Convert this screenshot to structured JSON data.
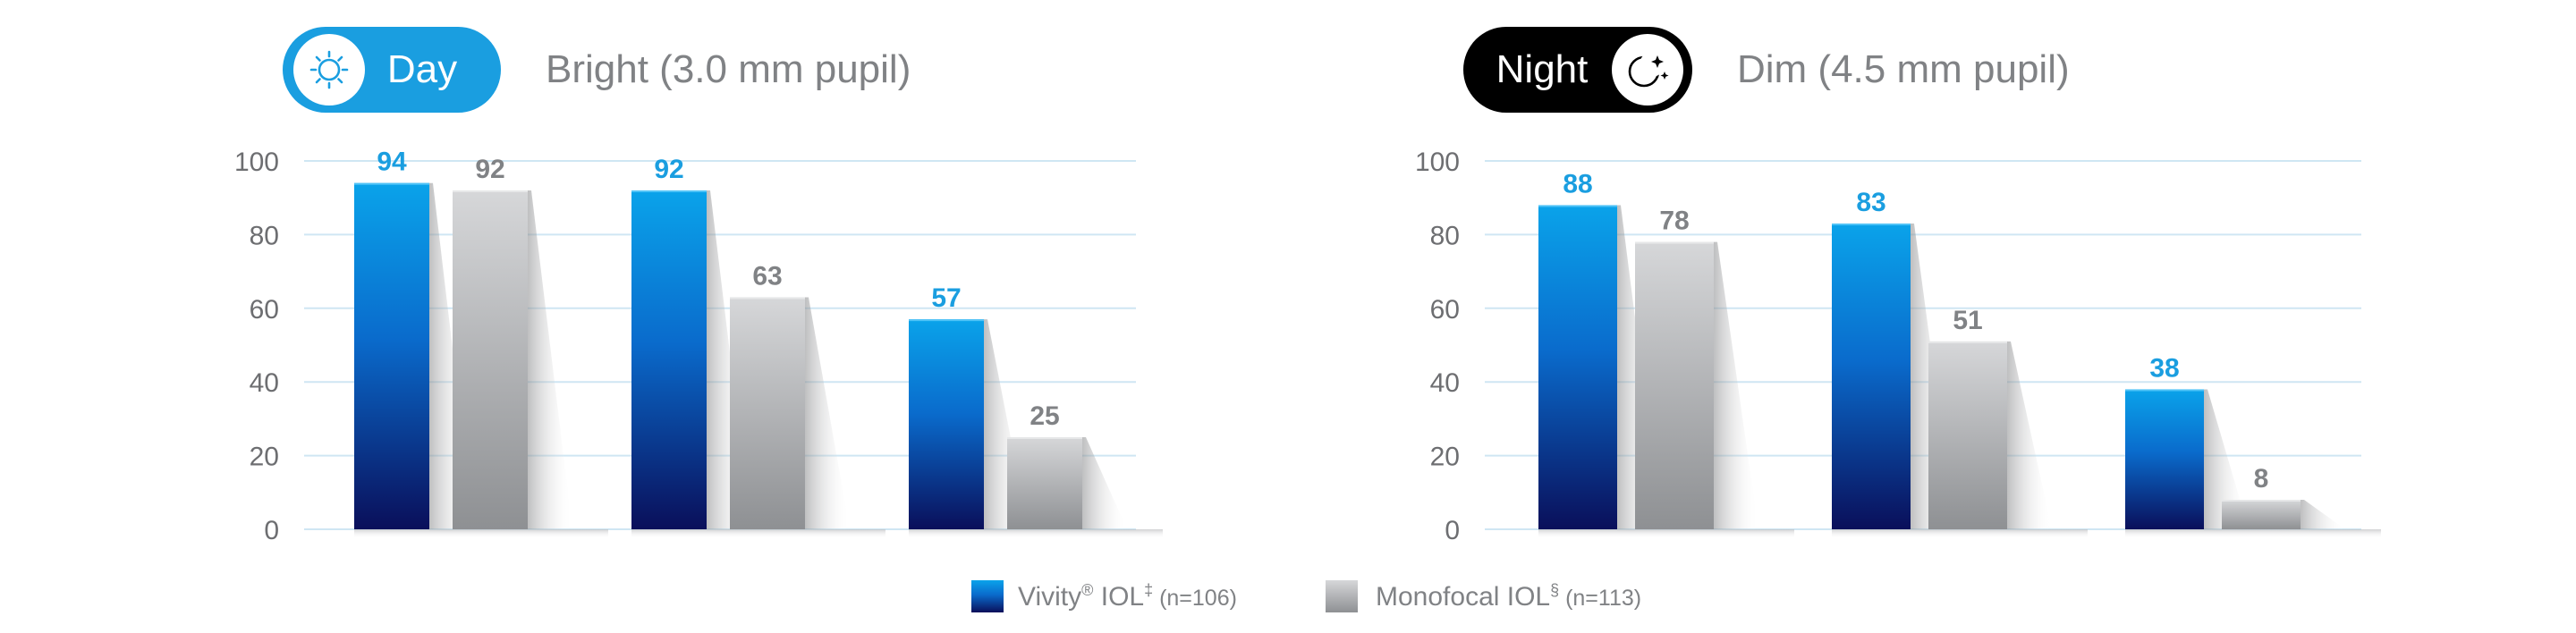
{
  "colors": {
    "vivity": "#0a9be6",
    "vivity_dark": "#0a1a6e",
    "vivity_label": "#1a9ee0",
    "monofocal": "#c9cacc",
    "monofocal_dark": "#8f9194",
    "monofocal_label": "#808285",
    "grid": "#cfe6f3",
    "axis_text": "#6d6e71",
    "day_pill": "#1a9ee0",
    "night_pill": "#000000"
  },
  "panels": [
    {
      "pill_label": "Day",
      "pill_icon": "sun-icon",
      "subtitle": "Bright (3.0 mm pupil)"
    },
    {
      "pill_label": "Night",
      "pill_icon": "moon-stars-icon",
      "subtitle": "Dim (4.5 mm pupil)"
    }
  ],
  "legend": [
    {
      "name": "Vivity",
      "mark": "®",
      "suffix": " IOL",
      "sup": "‡",
      "n": " (n=106)"
    },
    {
      "name": "Monofocal IOL",
      "mark": "",
      "suffix": "",
      "sup": "§",
      "n": " (n=113)"
    }
  ],
  "chart_data": [
    {
      "type": "bar",
      "title": "Bright (3.0 mm pupil)",
      "categories": [
        "",
        "",
        ""
      ],
      "ylim": [
        0,
        100
      ],
      "yticks": [
        "0",
        "20",
        "40",
        "60",
        "80",
        "100"
      ],
      "grid": true,
      "series": [
        {
          "name": "Vivity IOL",
          "values": [
            94,
            92,
            57
          ]
        },
        {
          "name": "Monofocal IOL",
          "values": [
            92,
            63,
            25
          ]
        }
      ]
    },
    {
      "type": "bar",
      "title": "Dim (4.5 mm pupil)",
      "categories": [
        "",
        "",
        ""
      ],
      "ylim": [
        0,
        100
      ],
      "yticks": [
        "0",
        "20",
        "40",
        "60",
        "80",
        "100"
      ],
      "grid": true,
      "series": [
        {
          "name": "Vivity IOL",
          "values": [
            88,
            83,
            38
          ]
        },
        {
          "name": "Monofocal IOL",
          "values": [
            78,
            51,
            8
          ]
        }
      ]
    }
  ]
}
